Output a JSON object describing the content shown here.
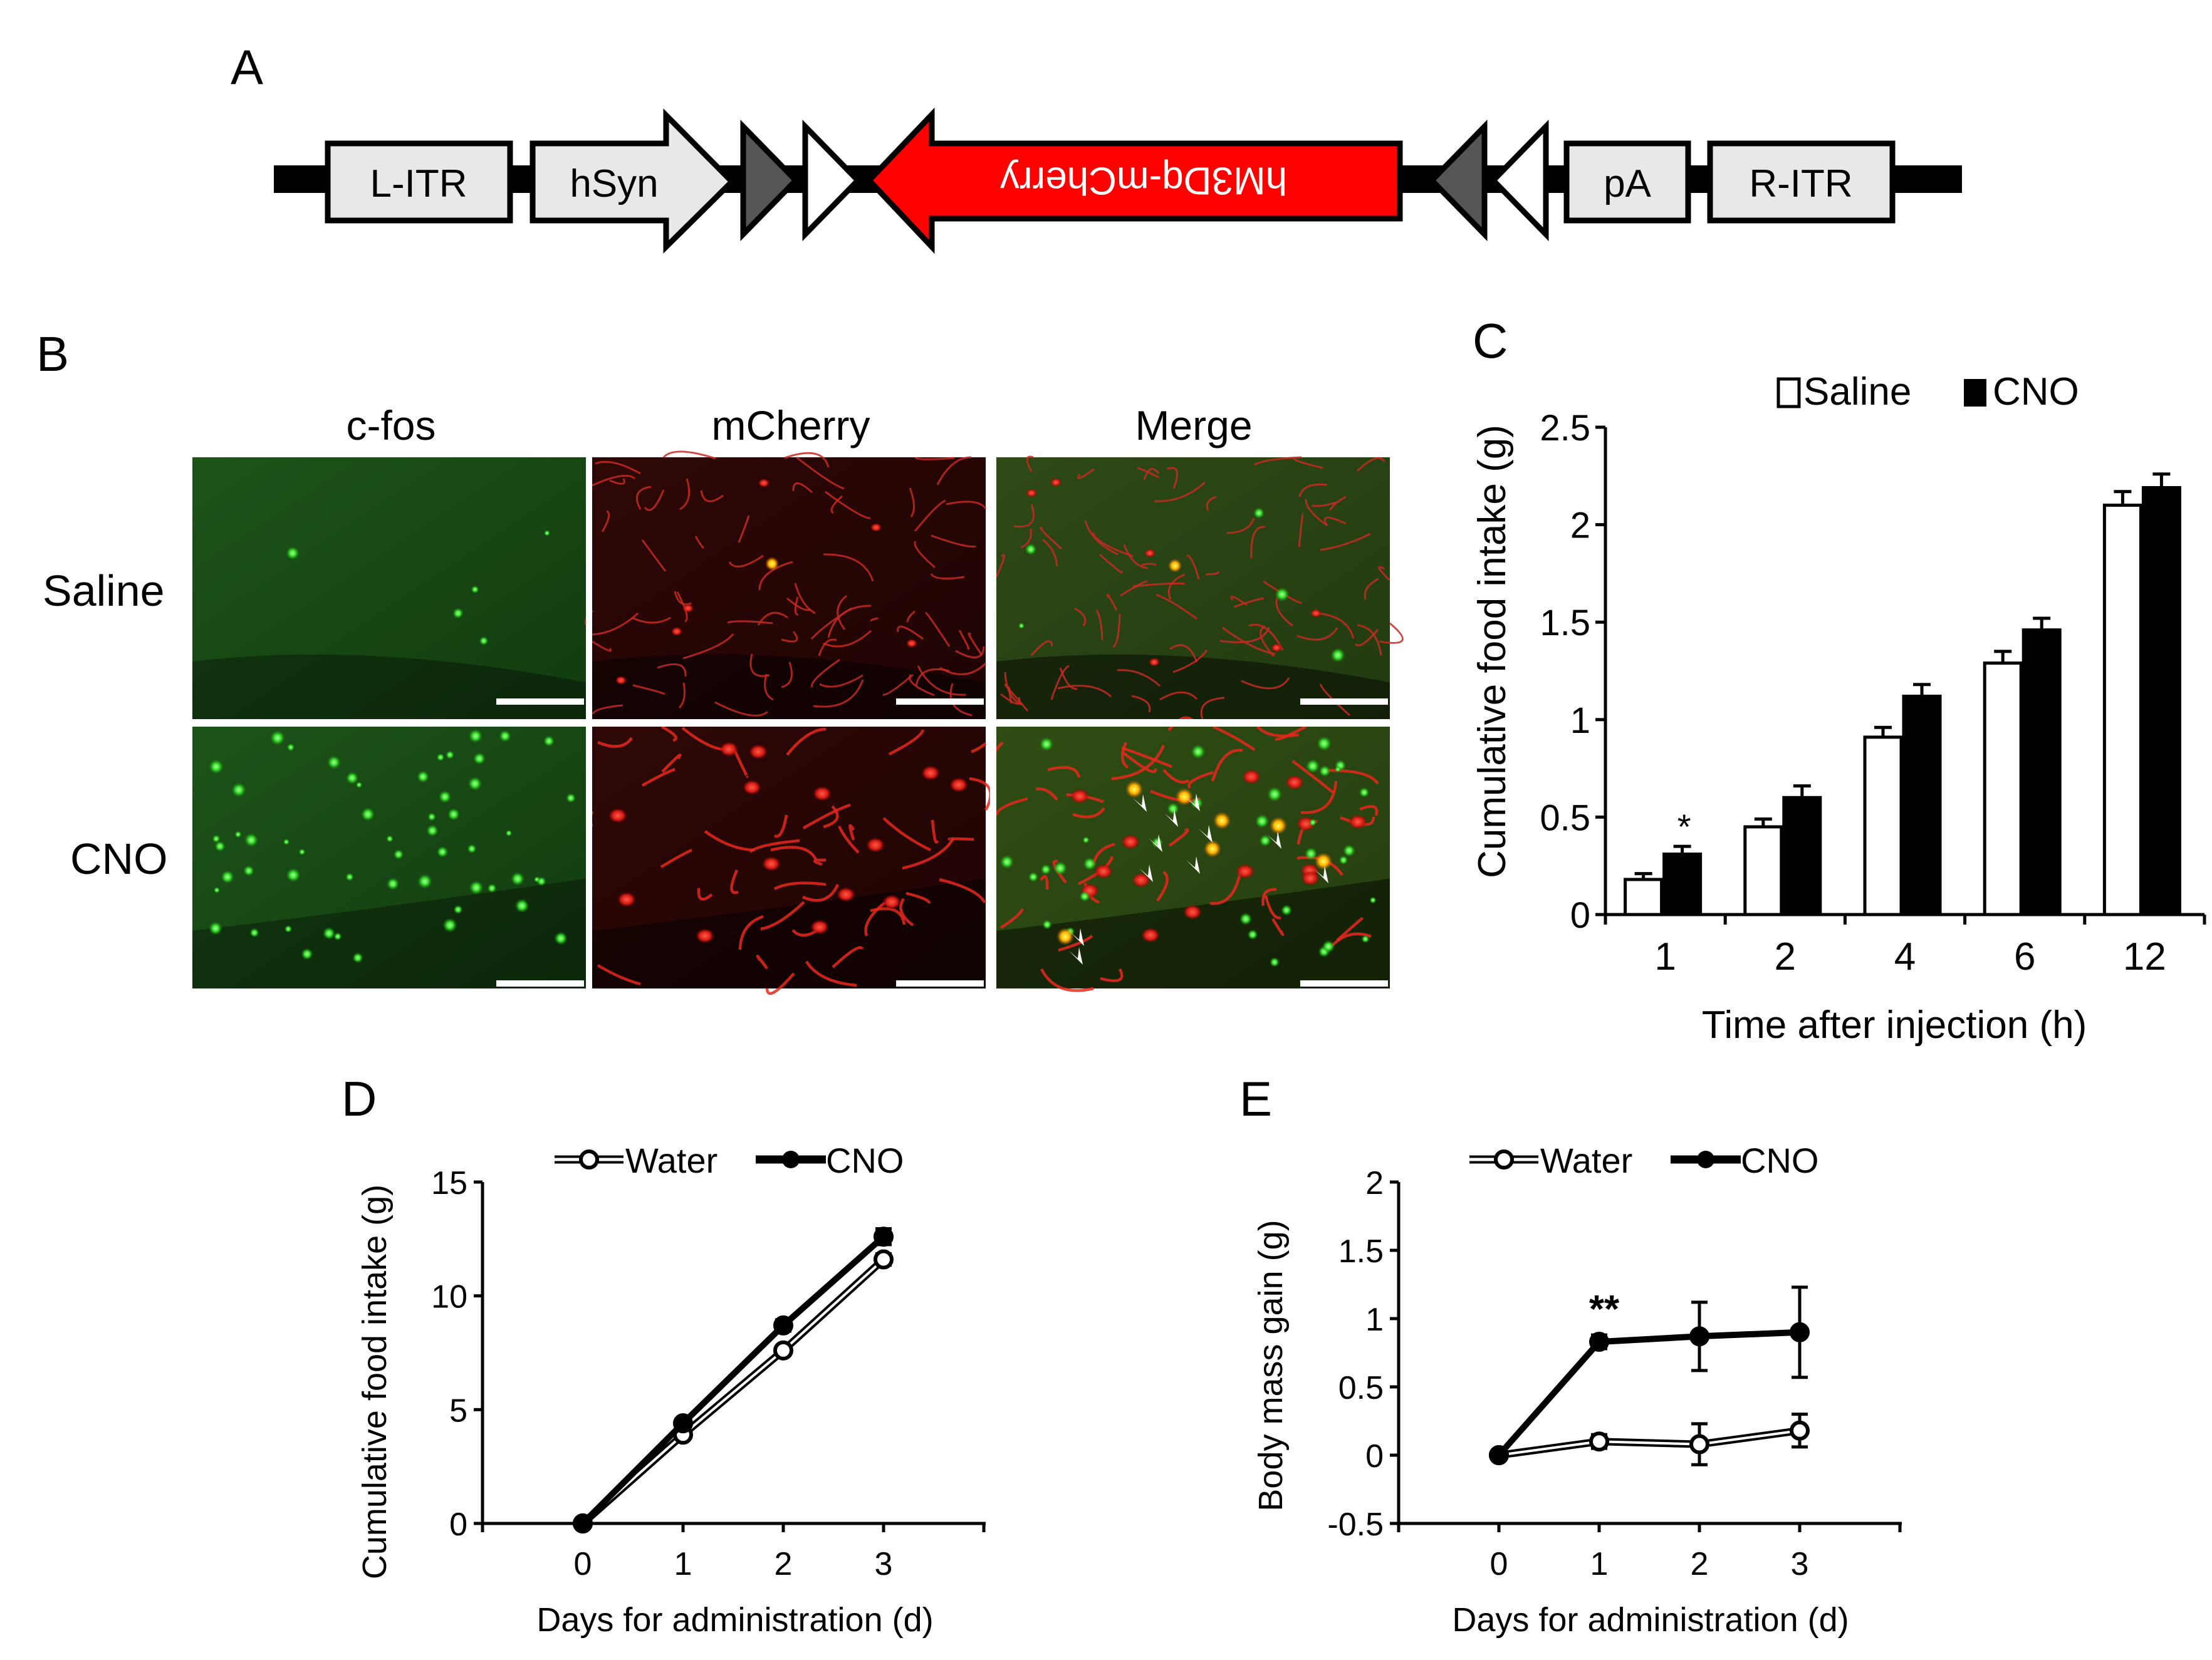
{
  "panel_labels": {
    "a": "A",
    "b": "B",
    "c": "C",
    "d": "D",
    "e": "E"
  },
  "construct": {
    "elements": {
      "l_itr": "L-ITR",
      "hsyn": "hSyn",
      "transgene": "hM3Dq-mCherry",
      "pa": "pA",
      "r_itr": "R-ITR"
    },
    "colors": {
      "transgene": "#ff0000",
      "box_fill": "#e8e8e8",
      "lox_dark": "#555555"
    }
  },
  "micrographs": {
    "columns": [
      "c-fos",
      "mCherry",
      "Merge"
    ],
    "rows": [
      "Saline",
      "CNO"
    ]
  },
  "chart_data": [
    {
      "panel": "C",
      "type": "bar",
      "categories": [
        "1",
        "2",
        "4",
        "6",
        "12"
      ],
      "series": [
        {
          "name": "Saline",
          "color": "#ffffff",
          "values": [
            0.18,
            0.45,
            0.91,
            1.29,
            2.1
          ],
          "errors": [
            0.03,
            0.04,
            0.05,
            0.06,
            0.07
          ]
        },
        {
          "name": "CNO",
          "color": "#000000",
          "values": [
            0.31,
            0.6,
            1.12,
            1.46,
            2.19
          ],
          "errors": [
            0.04,
            0.06,
            0.06,
            0.06,
            0.07
          ]
        }
      ],
      "ylim": [
        0,
        2.5
      ],
      "yticks": [
        "0",
        "0.5",
        "1",
        "1.5",
        "2",
        "2.5"
      ],
      "ylabel": "Cumulative food intake (g)",
      "xlabel": "Time after injection (h)",
      "legend": "top",
      "annotations": [
        {
          "category": "1",
          "text": "*"
        }
      ]
    },
    {
      "panel": "D",
      "type": "line",
      "x": [
        0,
        1,
        2,
        3
      ],
      "series": [
        {
          "name": "Water",
          "marker": "open-circle",
          "values": [
            0,
            3.9,
            7.6,
            11.6
          ],
          "errors": [
            0,
            0.15,
            0.2,
            0.25
          ]
        },
        {
          "name": "CNO",
          "marker": "filled-circle",
          "values": [
            0,
            4.4,
            8.7,
            12.6
          ],
          "errors": [
            0,
            0.2,
            0.25,
            0.35
          ]
        }
      ],
      "ylim": [
        0,
        15
      ],
      "yticks": [
        "0",
        "5",
        "10",
        "15"
      ],
      "xticks": [
        "0",
        "1",
        "2",
        "3"
      ],
      "ylabel": "Cumulative food intake (g)",
      "xlabel": "Days for administration (d)",
      "legend": "top"
    },
    {
      "panel": "E",
      "type": "line",
      "x": [
        0,
        1,
        2,
        3
      ],
      "series": [
        {
          "name": "Water",
          "marker": "open-circle",
          "values": [
            0,
            0.1,
            0.08,
            0.18
          ],
          "errors": [
            0,
            0.05,
            0.15,
            0.12
          ]
        },
        {
          "name": "CNO",
          "marker": "filled-circle",
          "values": [
            0,
            0.83,
            0.87,
            0.9
          ],
          "errors": [
            0,
            0.05,
            0.25,
            0.33
          ]
        }
      ],
      "ylim": [
        -0.5,
        2
      ],
      "yticks": [
        "-0.5",
        "0",
        "0.5",
        "1",
        "1.5",
        "2"
      ],
      "xticks": [
        "0",
        "1",
        "2",
        "3"
      ],
      "ylabel": "Body mass gain (g)",
      "xlabel": "Days for administration (d)",
      "legend": "top",
      "annotations": [
        {
          "x": 1,
          "text": "**"
        }
      ]
    }
  ]
}
